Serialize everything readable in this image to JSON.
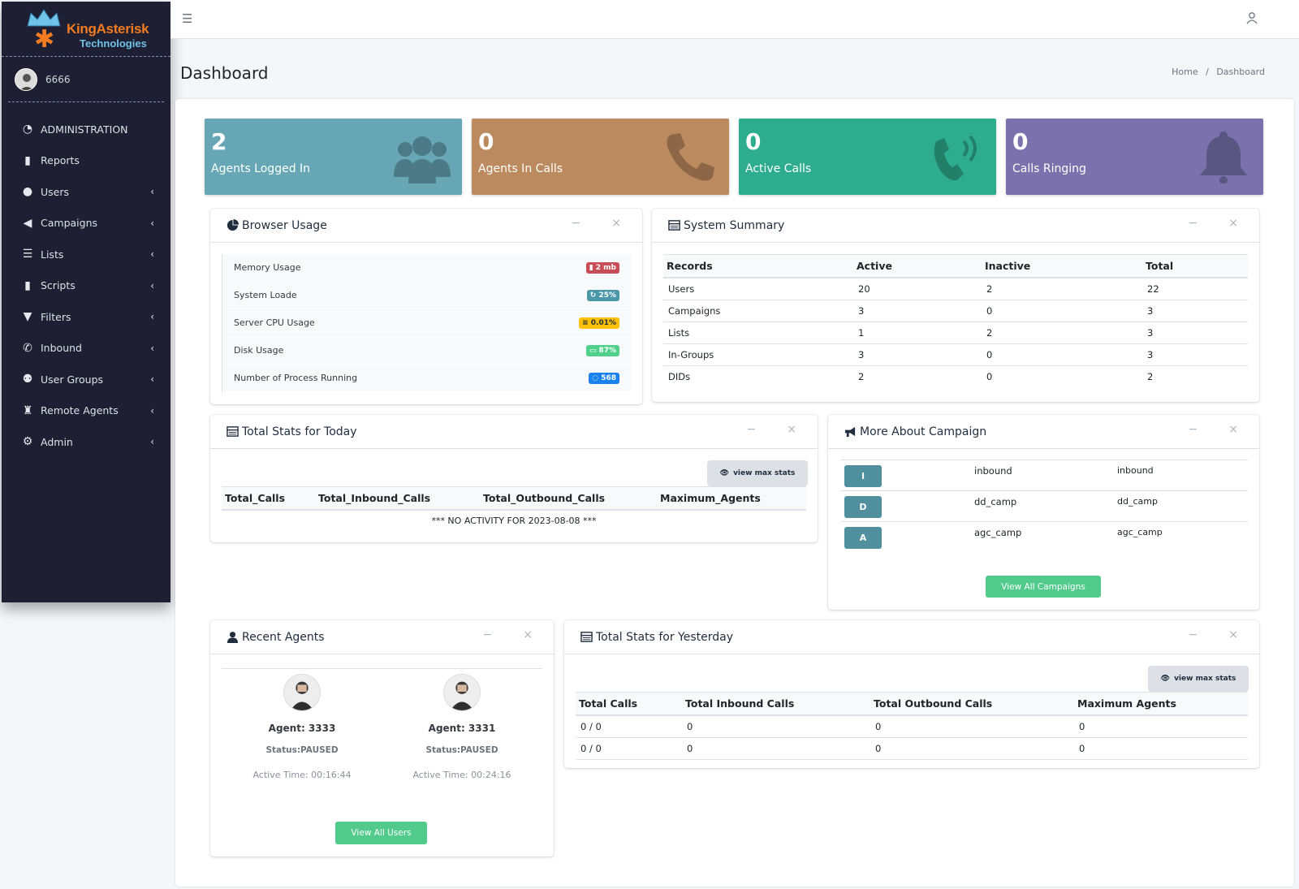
{
  "brand": {
    "name_line1": "KingAsterisk",
    "name_line2": "Technologies"
  },
  "user": {
    "name": "6666"
  },
  "sidebar": {
    "items": [
      {
        "label": "ADMINISTRATION",
        "icon": "gauge-icon",
        "has_children": false
      },
      {
        "label": "Reports",
        "icon": "file-icon",
        "has_children": false
      },
      {
        "label": "Users",
        "icon": "user-icon",
        "has_children": true
      },
      {
        "label": "Campaigns",
        "icon": "bullhorn-icon",
        "has_children": true
      },
      {
        "label": "Lists",
        "icon": "list-icon",
        "has_children": true
      },
      {
        "label": "Scripts",
        "icon": "file-icon",
        "has_children": true
      },
      {
        "label": "Filters",
        "icon": "filter-icon",
        "has_children": true
      },
      {
        "label": "Inbound",
        "icon": "phone-icon",
        "has_children": true
      },
      {
        "label": "User Groups",
        "icon": "users-icon",
        "has_children": true
      },
      {
        "label": "Remote Agents",
        "icon": "user-secret-icon",
        "has_children": true
      },
      {
        "label": "Admin",
        "icon": "gear-icon",
        "has_children": true
      }
    ]
  },
  "header": {
    "title": "Dashboard",
    "breadcrumb_home": "Home",
    "breadcrumb_sep": "/",
    "breadcrumb_current": "Dashboard"
  },
  "stats": [
    {
      "value": "2",
      "label": "Agents Logged In",
      "color": "#66a6b5",
      "icon": "users-icon"
    },
    {
      "value": "0",
      "label": "Agents In Calls",
      "color": "#bc8a5f",
      "icon": "phone-icon"
    },
    {
      "value": "0",
      "label": "Active Calls",
      "color": "#2eac8e",
      "icon": "phone-volume-icon"
    },
    {
      "value": "0",
      "label": "Calls Ringing",
      "color": "#7b72ad",
      "icon": "bell-icon"
    }
  ],
  "browser_usage": {
    "title": "Browser Usage",
    "rows": [
      {
        "label": "Memory Usage",
        "badge": "2 mb"
      },
      {
        "label": "System Loade",
        "badge": "25%"
      },
      {
        "label": "Server CPU Usage",
        "badge": "0.01%"
      },
      {
        "label": "Disk Usage",
        "badge": "87%"
      },
      {
        "label": "Number of Process Running",
        "badge": "568"
      }
    ]
  },
  "system_summary": {
    "title": "System Summary",
    "columns": [
      "Records",
      "Active",
      "Inactive",
      "Total"
    ],
    "rows": [
      [
        "Users",
        "20",
        "2",
        "22"
      ],
      [
        "Campaigns",
        "3",
        "0",
        "3"
      ],
      [
        "Lists",
        "1",
        "2",
        "3"
      ],
      [
        "In-Groups",
        "3",
        "0",
        "3"
      ],
      [
        "DIDs",
        "2",
        "0",
        "2"
      ]
    ]
  },
  "today_stats": {
    "title": "Total Stats for Today",
    "button": "view max stats",
    "columns": [
      "Total_Calls",
      "Total_Inbound_Calls",
      "Total_Outbound_Calls",
      "Maximum_Agents"
    ],
    "message": "*** NO ACTIVITY FOR  2023-08-08 ***"
  },
  "campaigns": {
    "title": "More About Campaign",
    "rows": [
      {
        "letter": "I",
        "name": "inbound",
        "id": "inbound"
      },
      {
        "letter": "D",
        "name": "dd_camp",
        "id": "dd_camp"
      },
      {
        "letter": "A",
        "name": "agc_camp",
        "id": "agc_camp"
      }
    ],
    "button": "View All Campaigns"
  },
  "recent_agents": {
    "title": "Recent Agents",
    "agents": [
      {
        "name": "Agent: 3333",
        "status": "Status:PAUSED",
        "time": "Active Time: 00:16:44"
      },
      {
        "name": "Agent: 3331",
        "status": "Status:PAUSED",
        "time": "Active Time: 00:24:16"
      }
    ],
    "button": "View All Users"
  },
  "yesterday_stats": {
    "title": "Total Stats for Yesterday",
    "button": "view max stats",
    "columns": [
      "Total Calls",
      "Total Inbound Calls",
      "Total Outbound Calls",
      "Maximum Agents"
    ],
    "rows": [
      [
        "0 / 0",
        "0",
        "0",
        "0"
      ],
      [
        "0 / 0",
        "0",
        "0",
        "0"
      ]
    ]
  },
  "tools": {
    "collapse": "−",
    "close": "×"
  }
}
